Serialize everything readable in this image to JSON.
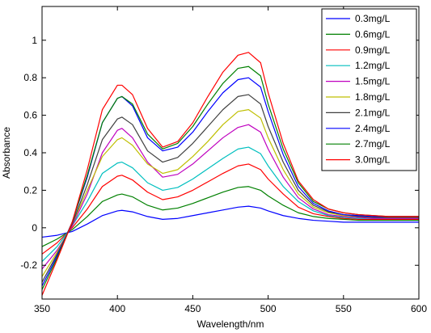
{
  "chart_data": {
    "type": "line",
    "title": "",
    "xlabel": "Wavelength/nm",
    "ylabel": "Absorbance",
    "xlim": [
      350,
      600
    ],
    "ylim": [
      -0.38,
      1.18
    ],
    "xticks": [
      350,
      400,
      450,
      500,
      550,
      600
    ],
    "yticks": [
      -0.2,
      0,
      0.2,
      0.4,
      0.6,
      0.8,
      1
    ],
    "ytick_labels": [
      "-0.2",
      "0",
      "0.2",
      "0.4",
      "0.6",
      "0.8",
      "1"
    ],
    "grid": false,
    "legend_position": "top-right",
    "x": [
      350,
      360,
      370,
      380,
      390,
      400,
      403,
      410,
      420,
      430,
      440,
      450,
      460,
      470,
      480,
      487,
      495,
      500,
      510,
      520,
      530,
      540,
      550,
      560,
      570,
      580,
      590,
      600
    ],
    "series": [
      {
        "name": "0.3mg/L",
        "color": "#0000ff",
        "values": [
          -0.05,
          -0.04,
          -0.02,
          0.02,
          0.065,
          0.09,
          0.093,
          0.085,
          0.06,
          0.045,
          0.05,
          0.065,
          0.08,
          0.095,
          0.11,
          0.115,
          0.105,
          0.09,
          0.065,
          0.05,
          0.04,
          0.035,
          0.03,
          0.03,
          0.03,
          0.03,
          0.03,
          0.03
        ]
      },
      {
        "name": "0.6mg/L",
        "color": "#008000",
        "values": [
          -0.1,
          -0.06,
          -0.01,
          0.06,
          0.14,
          0.175,
          0.18,
          0.165,
          0.12,
          0.095,
          0.105,
          0.13,
          0.16,
          0.19,
          0.215,
          0.22,
          0.2,
          0.17,
          0.12,
          0.08,
          0.06,
          0.05,
          0.045,
          0.04,
          0.04,
          0.04,
          0.04,
          0.04
        ]
      },
      {
        "name": "0.9mg/L",
        "color": "#ff0000",
        "values": [
          -0.14,
          -0.08,
          0,
          0.1,
          0.22,
          0.275,
          0.28,
          0.255,
          0.19,
          0.15,
          0.165,
          0.2,
          0.245,
          0.29,
          0.33,
          0.34,
          0.31,
          0.26,
          0.18,
          0.11,
          0.075,
          0.06,
          0.05,
          0.045,
          0.045,
          0.045,
          0.045,
          0.045
        ]
      },
      {
        "name": "1.2mg/L",
        "color": "#00bfbf",
        "values": [
          -0.18,
          -0.1,
          0.01,
          0.14,
          0.29,
          0.345,
          0.35,
          0.32,
          0.24,
          0.2,
          0.215,
          0.26,
          0.315,
          0.37,
          0.42,
          0.43,
          0.395,
          0.33,
          0.22,
          0.14,
          0.09,
          0.065,
          0.055,
          0.05,
          0.05,
          0.05,
          0.05,
          0.05
        ]
      },
      {
        "name": "1.5mg/L",
        "color": "#bf00bf",
        "values": [
          -0.22,
          -0.12,
          0.01,
          0.18,
          0.4,
          0.52,
          0.53,
          0.48,
          0.35,
          0.27,
          0.285,
          0.34,
          0.41,
          0.48,
          0.535,
          0.55,
          0.51,
          0.42,
          0.27,
          0.16,
          0.1,
          0.07,
          0.06,
          0.055,
          0.05,
          0.05,
          0.05,
          0.05
        ]
      },
      {
        "name": "1.8mg/L",
        "color": "#bfbf00",
        "values": [
          -0.26,
          -0.13,
          0.02,
          0.2,
          0.38,
          0.47,
          0.48,
          0.44,
          0.34,
          0.29,
          0.31,
          0.38,
          0.46,
          0.55,
          0.62,
          0.63,
          0.585,
          0.48,
          0.31,
          0.18,
          0.11,
          0.08,
          0.065,
          0.06,
          0.055,
          0.055,
          0.055,
          0.055
        ]
      },
      {
        "name": "2.1mg/L",
        "color": "#404040",
        "values": [
          -0.29,
          -0.14,
          0.02,
          0.23,
          0.47,
          0.58,
          0.59,
          0.55,
          0.41,
          0.35,
          0.375,
          0.45,
          0.54,
          0.63,
          0.7,
          0.71,
          0.66,
          0.54,
          0.35,
          0.2,
          0.12,
          0.085,
          0.07,
          0.06,
          0.055,
          0.055,
          0.055,
          0.055
        ]
      },
      {
        "name": "2.4mg/L",
        "color": "#0000ff",
        "values": [
          -0.31,
          -0.15,
          0.03,
          0.27,
          0.56,
          0.69,
          0.7,
          0.65,
          0.48,
          0.41,
          0.43,
          0.51,
          0.62,
          0.72,
          0.79,
          0.8,
          0.75,
          0.62,
          0.39,
          0.22,
          0.13,
          0.09,
          0.07,
          0.065,
          0.06,
          0.06,
          0.06,
          0.06
        ]
      },
      {
        "name": "2.7mg/L",
        "color": "#008000",
        "values": [
          -0.33,
          -0.16,
          0.03,
          0.28,
          0.56,
          0.69,
          0.7,
          0.66,
          0.5,
          0.42,
          0.45,
          0.54,
          0.66,
          0.77,
          0.85,
          0.86,
          0.81,
          0.66,
          0.42,
          0.24,
          0.14,
          0.1,
          0.08,
          0.07,
          0.065,
          0.06,
          0.06,
          0.06
        ]
      },
      {
        "name": "3.0mg/L",
        "color": "#ff0000",
        "values": [
          -0.36,
          -0.17,
          0.03,
          0.31,
          0.63,
          0.76,
          0.76,
          0.71,
          0.53,
          0.43,
          0.46,
          0.56,
          0.7,
          0.83,
          0.92,
          0.935,
          0.88,
          0.72,
          0.45,
          0.25,
          0.15,
          0.1,
          0.08,
          0.07,
          0.065,
          0.06,
          0.06,
          0.06
        ]
      }
    ]
  }
}
